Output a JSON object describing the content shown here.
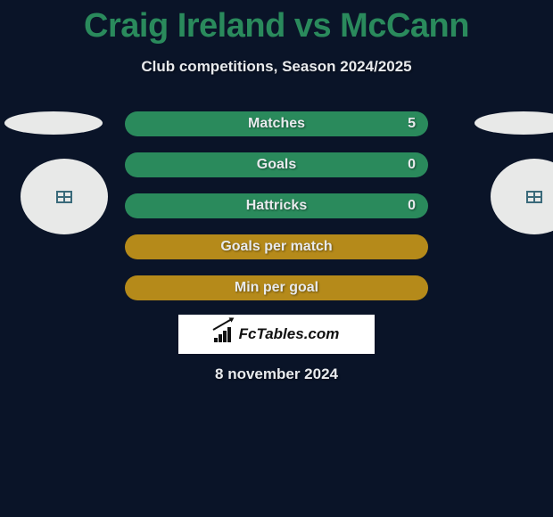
{
  "title": "Craig Ireland vs McCann",
  "subtitle": "Club competitions, Season 2024/2025",
  "date": "8 november 2024",
  "colors": {
    "background": "#0a1428",
    "green": "#2a8a5c",
    "amber": "#b58a1a",
    "text": "#e8eaed",
    "white": "#ffffff"
  },
  "stats": [
    {
      "label": "Matches",
      "value": "5",
      "variant": "green"
    },
    {
      "label": "Goals",
      "value": "0",
      "variant": "green"
    },
    {
      "label": "Hattricks",
      "value": "0",
      "variant": "green"
    },
    {
      "label": "Goals per match",
      "value": "",
      "variant": "amber"
    },
    {
      "label": "Min per goal",
      "value": "",
      "variant": "amber"
    }
  ],
  "logo_text": "FcTables.com"
}
